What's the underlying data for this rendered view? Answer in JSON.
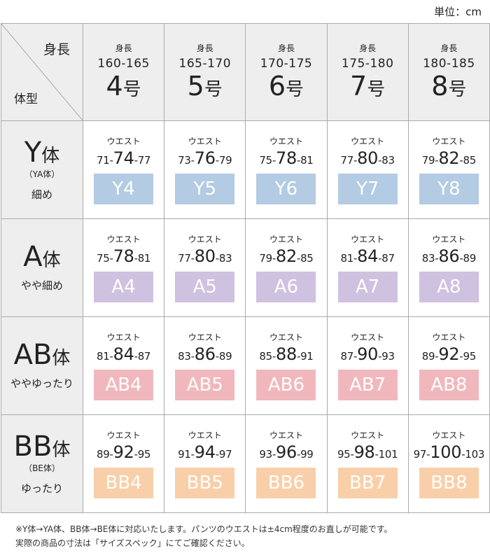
{
  "unit_label": "単位：cm",
  "corner": {
    "height_label": "身長",
    "type_label": "体型"
  },
  "columns": [
    {
      "sub": "身長",
      "range": "160-165",
      "num": "4",
      "suffix": "号"
    },
    {
      "sub": "身長",
      "range": "165-170",
      "num": "5",
      "suffix": "号"
    },
    {
      "sub": "身長",
      "range": "170-175",
      "num": "6",
      "suffix": "号"
    },
    {
      "sub": "身長",
      "range": "175-180",
      "num": "7",
      "suffix": "号"
    },
    {
      "sub": "身長",
      "range": "180-185",
      "num": "8",
      "suffix": "号"
    }
  ],
  "rows": [
    {
      "letter": "Y",
      "suffix": "体",
      "alt": "（YA体）",
      "desc": "細め",
      "color": "#b3cbe3",
      "cells": [
        {
          "waist_label": "ウエスト",
          "min": "71",
          "mid": "74",
          "max": "77",
          "code": "Y4"
        },
        {
          "waist_label": "ウエスト",
          "min": "73",
          "mid": "76",
          "max": "79",
          "code": "Y5"
        },
        {
          "waist_label": "ウエスト",
          "min": "75",
          "mid": "78",
          "max": "81",
          "code": "Y6"
        },
        {
          "waist_label": "ウエスト",
          "min": "77",
          "mid": "80",
          "max": "83",
          "code": "Y7"
        },
        {
          "waist_label": "ウエスト",
          "min": "79",
          "mid": "82",
          "max": "85",
          "code": "Y8"
        }
      ]
    },
    {
      "letter": "A",
      "suffix": "体",
      "alt": "",
      "desc": "やや細め",
      "color": "#cfc1e0",
      "cells": [
        {
          "waist_label": "ウエスト",
          "min": "75",
          "mid": "78",
          "max": "81",
          "code": "A4"
        },
        {
          "waist_label": "ウエスト",
          "min": "77",
          "mid": "80",
          "max": "83",
          "code": "A5"
        },
        {
          "waist_label": "ウエスト",
          "min": "79",
          "mid": "82",
          "max": "85",
          "code": "A6"
        },
        {
          "waist_label": "ウエスト",
          "min": "81",
          "mid": "84",
          "max": "87",
          "code": "A7"
        },
        {
          "waist_label": "ウエスト",
          "min": "83",
          "mid": "86",
          "max": "89",
          "code": "A8"
        }
      ]
    },
    {
      "letter": "AB",
      "suffix": "体",
      "alt": "",
      "desc": "ややゆったり",
      "color": "#f0b8bd",
      "cells": [
        {
          "waist_label": "ウエスト",
          "min": "81",
          "mid": "84",
          "max": "87",
          "code": "AB4"
        },
        {
          "waist_label": "ウエスト",
          "min": "83",
          "mid": "86",
          "max": "89",
          "code": "AB5"
        },
        {
          "waist_label": "ウエスト",
          "min": "85",
          "mid": "88",
          "max": "91",
          "code": "AB6"
        },
        {
          "waist_label": "ウエスト",
          "min": "87",
          "mid": "90",
          "max": "93",
          "code": "AB7"
        },
        {
          "waist_label": "ウエスト",
          "min": "89",
          "mid": "92",
          "max": "95",
          "code": "AB8"
        }
      ]
    },
    {
      "letter": "BB",
      "suffix": "体",
      "alt": "（BE体）",
      "desc": "ゆったり",
      "color": "#f9cfa9",
      "cells": [
        {
          "waist_label": "ウエスト",
          "min": "89",
          "mid": "92",
          "max": "95",
          "code": "BB4"
        },
        {
          "waist_label": "ウエスト",
          "min": "91",
          "mid": "94",
          "max": "97",
          "code": "BB5"
        },
        {
          "waist_label": "ウエスト",
          "min": "93",
          "mid": "96",
          "max": "99",
          "code": "BB6"
        },
        {
          "waist_label": "ウエスト",
          "min": "95",
          "mid": "98",
          "max": "101",
          "code": "BB7"
        },
        {
          "waist_label": "ウエスト",
          "min": "97",
          "mid": "100",
          "max": "103",
          "code": "BB8"
        }
      ]
    }
  ],
  "notes": [
    "※Y体→YA体、BB体→BE体に対応いたします。パンツのウエストは±4cm程度のお直しが可能です。",
    "実際の商品の寸法は「サイズスペック」にてご確認ください。"
  ]
}
